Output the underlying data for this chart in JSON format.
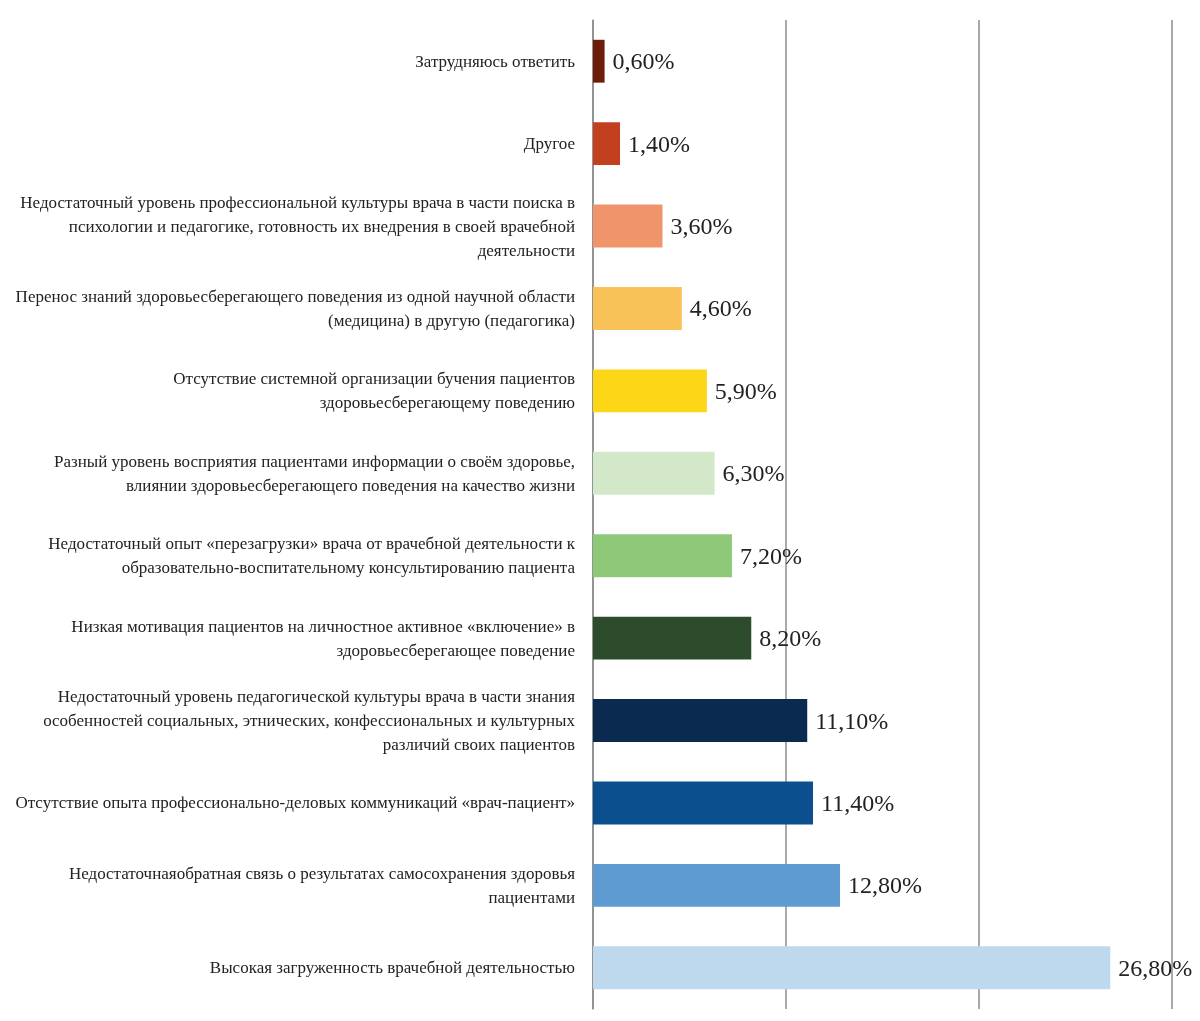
{
  "chart_data": {
    "type": "bar",
    "orientation": "horizontal",
    "categories": [
      "Затрудняюсь ответить",
      "Другое",
      "Недостаточный уровень профессиональной культуры врача в части поиска в психологии и педагогике, готовность их внедрения в своей врачебной деятельности",
      "Перенос знаний здоровьесберегающего поведения из одной научной области (медицина) в другую (педагогика)",
      "Отсутствие системной организации бучения пациентов здоровьесберегающему поведению",
      "Разный уровень восприятия пациентами информации о своём здоровье, влиянии здоровьесберегающего поведения на качество жизни",
      "Недостаточный опыт «перезагрузки» врача от врачебной деятельности к образовательно-воспитательному консультированию пациента",
      "Низкая мотивация пациентов на личностное активное «включение» в здоровьесберегающее поведение",
      "Недостаточный уровень педагогической культуры врача в части знания особенностей социальных, этнических, конфессиональных и культурных различий своих пациентов",
      "Отсутствие опыта профессионально-деловых коммуникаций «врач-пациент»",
      "Недостаточнаяобратная связь о результатах самосохранения здоровья пациентами",
      "Высокая загруженность врачебной деятельностью"
    ],
    "values": [
      0.6,
      1.4,
      3.6,
      4.6,
      5.9,
      6.3,
      7.2,
      8.2,
      11.1,
      11.4,
      12.8,
      26.8
    ],
    "value_labels": [
      "0,60%",
      "1,40%",
      "3,60%",
      "4,60%",
      "5,90%",
      "6,30%",
      "7,20%",
      "8,20%",
      "11,10%",
      "11,40%",
      "12,80%",
      "26,80%"
    ],
    "colors": [
      "#6b1d0a",
      "#c2401f",
      "#f0956b",
      "#f8c259",
      "#fdd617",
      "#d3e7c9",
      "#8ec97a",
      "#2c4c2b",
      "#0b2a4f",
      "#0c4f8f",
      "#5e9bd1",
      "#bed8ee"
    ],
    "xlim": [
      0,
      30
    ],
    "xticks": [
      {
        "value": 0,
        "label": null
      },
      {
        "value": 10,
        "label": null
      },
      {
        "value": 20,
        "label": null
      },
      {
        "value": 30,
        "label": null
      }
    ],
    "tick_labels": "y",
    "grid": "x"
  }
}
